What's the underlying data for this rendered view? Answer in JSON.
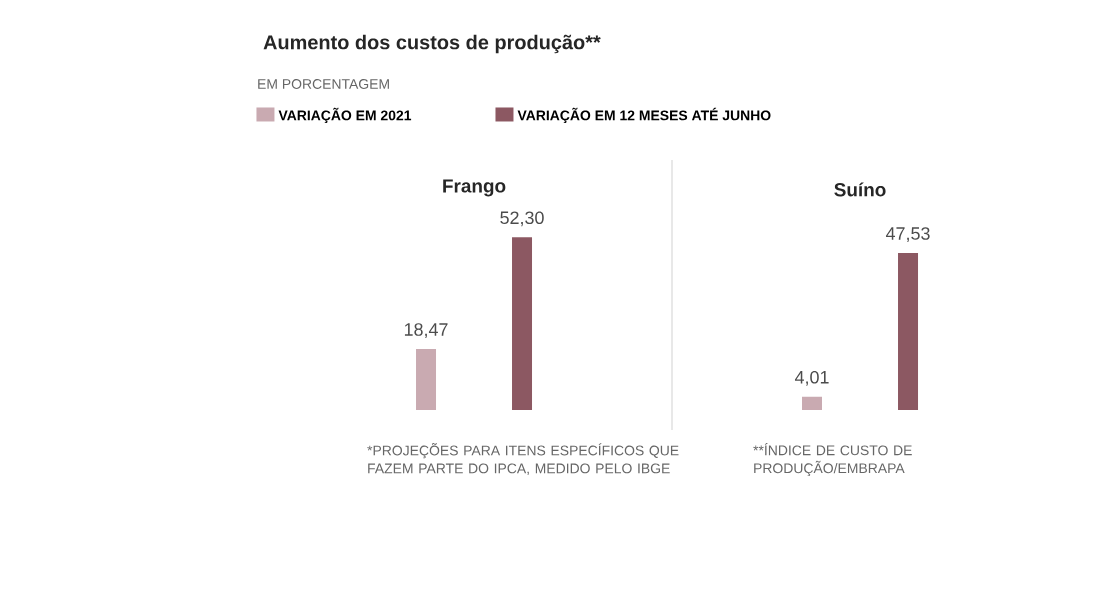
{
  "chart_data": {
    "type": "bar",
    "title": "Aumento dos custos de produção**",
    "subtitle": "EM PORCENTAGEM",
    "categories": [
      "Frango",
      "Suíno"
    ],
    "legend": "top",
    "series": [
      {
        "name": "VARIAÇÃO EM 2021",
        "color": "#c9aab1",
        "values": [
          18.47,
          4.01
        ],
        "value_labels": [
          "18,47",
          "4,01"
        ]
      },
      {
        "name": "VARIAÇÃO EM 12 MESES ATÉ JUNHO",
        "color": "#8c5862",
        "values": [
          52.3,
          47.53
        ],
        "value_labels": [
          "52,30",
          "47,53"
        ]
      }
    ],
    "annotations": [
      "*PROJEÇÕES PARA ITENS ESPECÍFICOS QUE FAZEM PARTE DO IPCA, MEDIDO PELO IBGE",
      "**ÍNDICE DE CUSTO DE PRODUÇÃO/EMBRAPA"
    ]
  }
}
